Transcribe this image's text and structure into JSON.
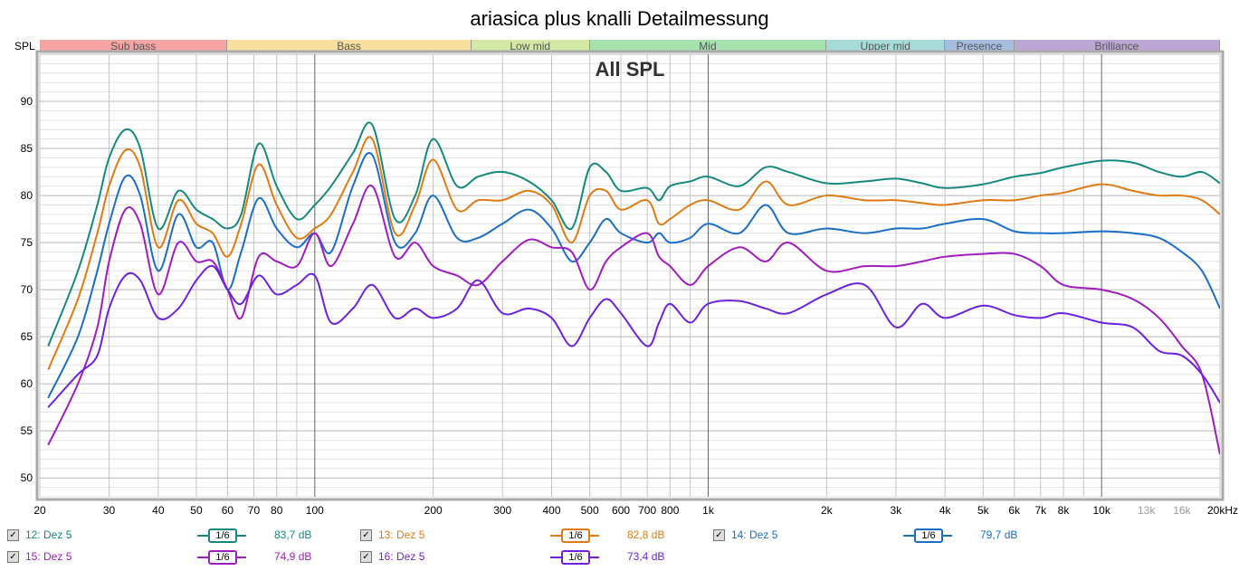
{
  "title": "ariasica plus knalli Detailmessung",
  "chart_data": {
    "type": "line",
    "title": "ariasica plus knalli Detailmessung",
    "subtitle": "All SPL",
    "ylabel": "SPL",
    "xlabel": "",
    "xscale": "log",
    "xlim": [
      20,
      20000
    ],
    "ylim": [
      48,
      95
    ],
    "grid": true,
    "y_ticks": [
      "50",
      "55",
      "60",
      "65",
      "70",
      "75",
      "80",
      "85",
      "90"
    ],
    "x_ticks": [
      {
        "f": 20,
        "l": "20"
      },
      {
        "f": 30,
        "l": "30"
      },
      {
        "f": 40,
        "l": "40"
      },
      {
        "f": 50,
        "l": "50"
      },
      {
        "f": 60,
        "l": "60"
      },
      {
        "f": 70,
        "l": "70"
      },
      {
        "f": 80,
        "l": "80"
      },
      {
        "f": 100,
        "l": "100"
      },
      {
        "f": 200,
        "l": "200"
      },
      {
        "f": 300,
        "l": "300"
      },
      {
        "f": 400,
        "l": "400"
      },
      {
        "f": 500,
        "l": "500"
      },
      {
        "f": 600,
        "l": "600"
      },
      {
        "f": 700,
        "l": "700"
      },
      {
        "f": 800,
        "l": "800"
      },
      {
        "f": 1000,
        "l": "1k"
      },
      {
        "f": 2000,
        "l": "2k"
      },
      {
        "f": 3000,
        "l": "3k"
      },
      {
        "f": 4000,
        "l": "4k"
      },
      {
        "f": 5000,
        "l": "5k"
      },
      {
        "f": 6000,
        "l": "6k"
      },
      {
        "f": 7000,
        "l": "7k"
      },
      {
        "f": 8000,
        "l": "8k"
      },
      {
        "f": 10000,
        "l": "10k"
      },
      {
        "f": 13000,
        "l": "13k",
        "minor": true
      },
      {
        "f": 16000,
        "l": "16k",
        "minor": true
      },
      {
        "f": 20000,
        "l": "20kHz"
      }
    ],
    "bands": [
      {
        "name": "Sub bass",
        "from": 20,
        "to": 60,
        "color": "#f5a3a3"
      },
      {
        "name": "Bass",
        "from": 60,
        "to": 250,
        "color": "#f7dfa0"
      },
      {
        "name": "Low mid",
        "from": 250,
        "to": 500,
        "color": "#d3e9a4"
      },
      {
        "name": "Mid",
        "from": 500,
        "to": 2000,
        "color": "#a6e2ae"
      },
      {
        "name": "Upper mid",
        "from": 2000,
        "to": 4000,
        "color": "#a6dcd8"
      },
      {
        "name": "Presence",
        "from": 4000,
        "to": 6000,
        "color": "#a6bde2"
      },
      {
        "name": "Brilliance",
        "from": 6000,
        "to": 20000,
        "color": "#bca6d4"
      }
    ],
    "x": [
      21,
      25,
      28,
      30,
      33,
      36,
      40,
      45,
      50,
      55,
      60,
      65,
      72,
      80,
      90,
      100,
      110,
      125,
      140,
      160,
      180,
      200,
      230,
      260,
      300,
      350,
      400,
      450,
      500,
      550,
      600,
      700,
      750,
      800,
      900,
      1000,
      1200,
      1400,
      1600,
      2000,
      2500,
      3000,
      3500,
      4000,
      5000,
      6000,
      7000,
      8000,
      10000,
      12000,
      14000,
      16000,
      18000,
      20000
    ],
    "series": [
      {
        "name": "12: Dez 5",
        "color": "#16897e",
        "smoothing": "1/6",
        "level": "83,7 dB",
        "values": [
          64,
          72,
          79,
          84,
          87,
          85,
          76.5,
          80.5,
          78.5,
          77.5,
          76.5,
          78,
          85.5,
          81,
          77.5,
          79,
          81,
          84.5,
          87.5,
          77.5,
          80,
          86,
          81,
          82,
          82.5,
          81.5,
          79.5,
          76.5,
          83,
          82.5,
          80.5,
          80.8,
          79.5,
          81,
          81.5,
          82,
          81,
          83,
          82.5,
          81.3,
          81.5,
          81.8,
          81.3,
          80.8,
          81.2,
          82,
          82.4,
          83,
          83.7,
          83.5,
          82.5,
          82,
          82.5,
          81.3
        ]
      },
      {
        "name": "13: Dez 5",
        "color": "#e07a12",
        "smoothing": "1/6",
        "level": "82,8 dB",
        "values": [
          61.5,
          69,
          76,
          81,
          84.8,
          83,
          74.5,
          79.5,
          77,
          76,
          73.5,
          77,
          83.3,
          79,
          75.5,
          76.5,
          78,
          82.5,
          86,
          76,
          79,
          83.8,
          78.5,
          79.5,
          79.5,
          80.5,
          79,
          75,
          80,
          80.5,
          78.5,
          79.5,
          77,
          77.5,
          79,
          79.5,
          78.5,
          81.5,
          79,
          80,
          79.5,
          79.5,
          79.2,
          79,
          79.5,
          79.5,
          80,
          80.3,
          81.2,
          80.5,
          80,
          80,
          79.5,
          78
        ]
      },
      {
        "name": "14: Dez 5",
        "color": "#1a6ec6",
        "smoothing": "1/6",
        "level": "79,7 dB",
        "values": [
          58.5,
          65,
          72,
          77,
          82,
          80,
          72,
          78,
          74.5,
          75,
          70,
          74,
          79.7,
          76.5,
          74.5,
          76,
          74,
          81,
          84.3,
          75,
          76,
          80,
          75.5,
          75.5,
          77,
          78.5,
          76.5,
          73,
          75,
          77.5,
          76,
          75,
          76,
          75,
          75.5,
          77,
          76,
          79,
          76,
          76.5,
          76,
          76.5,
          76.5,
          77,
          77.5,
          76.2,
          76,
          76,
          76.2,
          76,
          75.5,
          74,
          72,
          68
        ]
      },
      {
        "name": "15: Dez 5",
        "color": "#a01cbe",
        "smoothing": "1/6",
        "level": "74,9 dB",
        "values": [
          53.5,
          60,
          66,
          73,
          78.5,
          77,
          69.5,
          75,
          73,
          73,
          70,
          67,
          73.5,
          73,
          72.5,
          76,
          72.5,
          77,
          81,
          73.5,
          75,
          72.5,
          71.5,
          70.5,
          73,
          75.3,
          74.5,
          74,
          70,
          73,
          74.5,
          76,
          73.5,
          72.5,
          70.5,
          72.5,
          74.5,
          73,
          75,
          72,
          72.5,
          72.5,
          73,
          73.5,
          73.8,
          73.8,
          72.5,
          70.5,
          70,
          69,
          67,
          64,
          61,
          52.5
        ]
      },
      {
        "name": "16: Dez 5",
        "color": "#6c22dc",
        "smoothing": "1/6",
        "level": "73,4 dB",
        "values": [
          57.5,
          61,
          63,
          68,
          71.5,
          71,
          67,
          68,
          71,
          72.5,
          70,
          68.5,
          71.5,
          69.5,
          70.5,
          71.5,
          66.5,
          68,
          70.5,
          67,
          68,
          67,
          68,
          71,
          67.5,
          68,
          67,
          64,
          67,
          69,
          67.5,
          64,
          66.5,
          68.5,
          66.5,
          68.5,
          68.8,
          68,
          67.5,
          69.5,
          70.5,
          66,
          68.5,
          67,
          68.3,
          67.3,
          67,
          67.5,
          66.5,
          66,
          63.5,
          63,
          61,
          58
        ]
      }
    ]
  },
  "legend": {
    "checkbox_glyph": "✓"
  }
}
